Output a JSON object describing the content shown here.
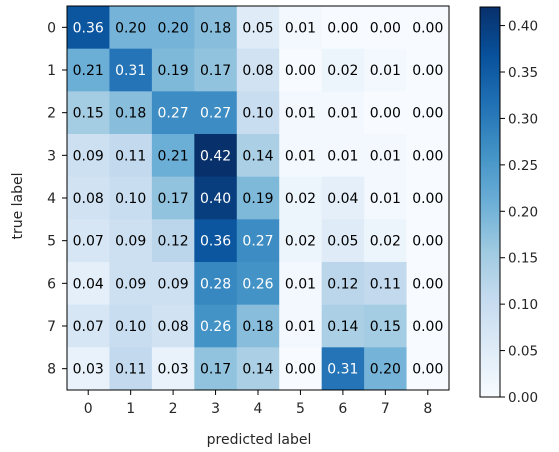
{
  "chart_data": {
    "type": "heatmap",
    "title": "",
    "xlabel": "predicted label",
    "ylabel": "true label",
    "x_categories": [
      "0",
      "1",
      "2",
      "3",
      "4",
      "5",
      "6",
      "7",
      "8"
    ],
    "y_categories": [
      "0",
      "1",
      "2",
      "3",
      "4",
      "5",
      "6",
      "7",
      "8"
    ],
    "values": [
      [
        0.36,
        0.2,
        0.2,
        0.18,
        0.05,
        0.01,
        0.0,
        0.0,
        0.0
      ],
      [
        0.21,
        0.31,
        0.19,
        0.17,
        0.08,
        0.0,
        0.02,
        0.01,
        0.0
      ],
      [
        0.15,
        0.18,
        0.27,
        0.27,
        0.1,
        0.01,
        0.01,
        0.0,
        0.0
      ],
      [
        0.09,
        0.11,
        0.21,
        0.42,
        0.14,
        0.01,
        0.01,
        0.01,
        0.0
      ],
      [
        0.08,
        0.1,
        0.17,
        0.4,
        0.19,
        0.02,
        0.04,
        0.01,
        0.0
      ],
      [
        0.07,
        0.09,
        0.12,
        0.36,
        0.27,
        0.02,
        0.05,
        0.02,
        0.0
      ],
      [
        0.04,
        0.09,
        0.09,
        0.28,
        0.26,
        0.01,
        0.12,
        0.11,
        0.0
      ],
      [
        0.07,
        0.1,
        0.08,
        0.26,
        0.18,
        0.01,
        0.14,
        0.15,
        0.0
      ],
      [
        0.03,
        0.11,
        0.03,
        0.17,
        0.14,
        0.0,
        0.31,
        0.2,
        0.0
      ]
    ],
    "value_labels": [
      [
        "0.36",
        "0.20",
        "0.20",
        "0.18",
        "0.05",
        "0.01",
        "0.00",
        "0.00",
        "0.00"
      ],
      [
        "0.21",
        "0.31",
        "0.19",
        "0.17",
        "0.08",
        "0.00",
        "0.02",
        "0.01",
        "0.00"
      ],
      [
        "0.15",
        "0.18",
        "0.27",
        "0.27",
        "0.10",
        "0.01",
        "0.01",
        "0.00",
        "0.00"
      ],
      [
        "0.09",
        "0.11",
        "0.21",
        "0.42",
        "0.14",
        "0.01",
        "0.01",
        "0.01",
        "0.00"
      ],
      [
        "0.08",
        "0.10",
        "0.17",
        "0.40",
        "0.19",
        "0.02",
        "0.04",
        "0.01",
        "0.00"
      ],
      [
        "0.07",
        "0.09",
        "0.12",
        "0.36",
        "0.27",
        "0.02",
        "0.05",
        "0.02",
        "0.00"
      ],
      [
        "0.04",
        "0.09",
        "0.09",
        "0.28",
        "0.26",
        "0.01",
        "0.12",
        "0.11",
        "0.00"
      ],
      [
        "0.07",
        "0.10",
        "0.08",
        "0.26",
        "0.18",
        "0.01",
        "0.14",
        "0.15",
        "0.00"
      ],
      [
        "0.03",
        "0.11",
        "0.03",
        "0.17",
        "0.14",
        "0.00",
        "0.31",
        "0.20",
        "0.00"
      ]
    ],
    "colormap": "Blues",
    "color_range": [
      0.0,
      0.42
    ],
    "colorbar_ticks": [
      0.0,
      0.05,
      0.1,
      0.15,
      0.2,
      0.25,
      0.3,
      0.35,
      0.4
    ],
    "colorbar_tick_labels": [
      "0.00",
      "0.05",
      "0.10",
      "0.15",
      "0.20",
      "0.25",
      "0.30",
      "0.35",
      "0.40"
    ],
    "colorbar_placement": "right",
    "grid": false,
    "colors": {
      "low": "#f7fbff",
      "high": "#08306b",
      "text_dark": "#000000",
      "text_light": "#ffffff"
    }
  }
}
